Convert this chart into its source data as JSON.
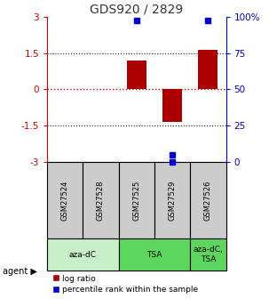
{
  "title": "GDS920 / 2829",
  "samples": [
    "GSM27524",
    "GSM27528",
    "GSM27525",
    "GSM27529",
    "GSM27526"
  ],
  "log_ratios": [
    0,
    0,
    1.2,
    -1.35,
    1.65
  ],
  "percentile_ranks": [
    null,
    null,
    97,
    5,
    96
  ],
  "percentile_norm": [
    null,
    null,
    2.85,
    -2.7,
    2.85
  ],
  "agents": [
    {
      "label": "aza-dC",
      "start": 0,
      "end": 2,
      "color": "#c8f0c8"
    },
    {
      "label": "TSA",
      "start": 2,
      "end": 4,
      "color": "#5cd65c"
    },
    {
      "label": "aza-dC,\nTSA",
      "start": 4,
      "end": 5,
      "color": "#5cd65c"
    }
  ],
  "ylim": [
    -3,
    3
  ],
  "yticks_left": [
    -3,
    -1.5,
    0,
    1.5,
    3
  ],
  "yticks_right": [
    0,
    25,
    50,
    75,
    100
  ],
  "bar_color": "#aa0000",
  "dot_color": "#0000cc",
  "hline_color": "#cc0000",
  "grid_color": "#222222",
  "label_color_left": "#cc0000",
  "label_color_right": "#0000cc",
  "bg_color": "#ffffff",
  "sample_box_color": "#cccccc"
}
